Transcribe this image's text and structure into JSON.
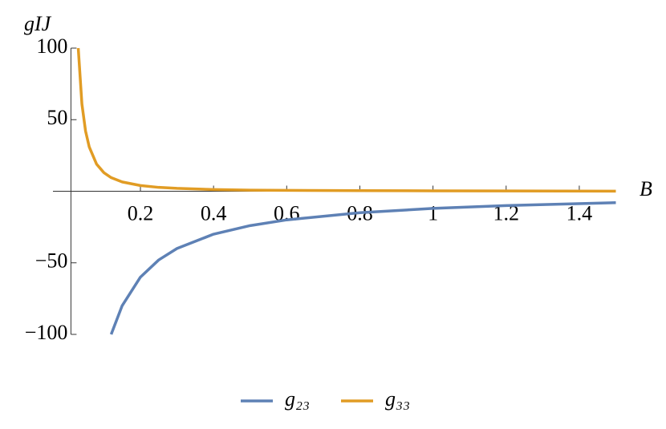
{
  "chart_data": {
    "type": "line",
    "xlabel": "B",
    "ylabel": "gIJ",
    "x": [
      0.03,
      0.04,
      0.05,
      0.06,
      0.08,
      0.1,
      0.12,
      0.15,
      0.2,
      0.25,
      0.3,
      0.4,
      0.5,
      0.6,
      0.8,
      1.0,
      1.2,
      1.5
    ],
    "series": [
      {
        "name": "g₂₃",
        "color": "#5e81b5",
        "values": [
          null,
          null,
          null,
          null,
          null,
          null,
          -100,
          -80,
          -60,
          -48,
          -40,
          -30,
          -24,
          -20,
          -15,
          -12,
          -10,
          -8
        ]
      },
      {
        "name": "g₃₃",
        "color": "#e19c24",
        "values": [
          100,
          61,
          42,
          31,
          19,
          13,
          9.5,
          6.5,
          4.0,
          2.7,
          2.0,
          1.2,
          0.8,
          0.6,
          0.4,
          0.3,
          0.2,
          0.1
        ]
      }
    ],
    "xlim": [
      0.01,
      1.5
    ],
    "ylim": [
      -100,
      100
    ],
    "xticks": [
      0.2,
      0.4,
      0.6,
      0.8,
      1.0,
      1.2,
      1.4
    ],
    "yticks": [
      {
        "value": -100,
        "label": "−100"
      },
      {
        "value": -50,
        "label": "−50"
      },
      50,
      100
    ],
    "legend": "bottom"
  }
}
